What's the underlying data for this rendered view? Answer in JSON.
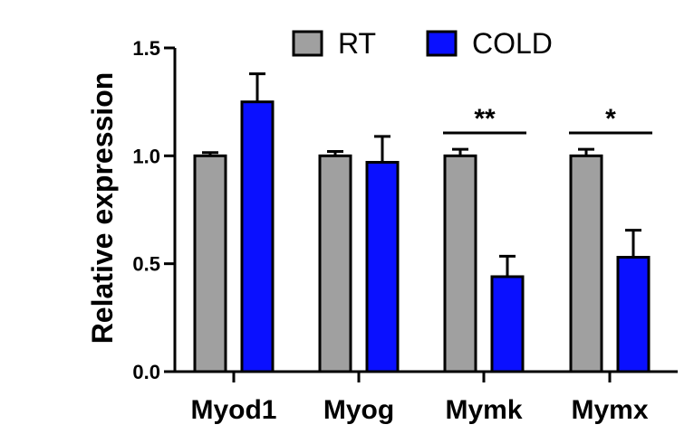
{
  "chart_data": {
    "type": "bar",
    "ylabel": "Relative expression",
    "xlabel": "",
    "ylim": [
      0,
      1.5
    ],
    "yticks": [
      {
        "value": 0,
        "label": "0.0"
      },
      {
        "value": 0.5,
        "label": "0.5"
      },
      {
        "value": 1.0,
        "label": "1.0"
      },
      {
        "value": 1.5,
        "label": "1.5"
      }
    ],
    "categories": [
      "Myod1",
      "Myog",
      "Mymk",
      "Mymx"
    ],
    "legend_position": "top",
    "series": [
      {
        "name": "RT",
        "color": "#a0a0a0",
        "values": [
          1.0,
          1.0,
          1.0,
          1.0
        ],
        "errors": [
          0.015,
          0.02,
          0.03,
          0.03
        ]
      },
      {
        "name": "COLD",
        "color": "#0a10ff",
        "values": [
          1.25,
          0.97,
          0.44,
          0.53
        ],
        "errors": [
          0.13,
          0.12,
          0.095,
          0.125
        ]
      }
    ],
    "significance": [
      {
        "category": "Mymk",
        "label": "**"
      },
      {
        "category": "Mymx",
        "label": "*"
      }
    ]
  }
}
